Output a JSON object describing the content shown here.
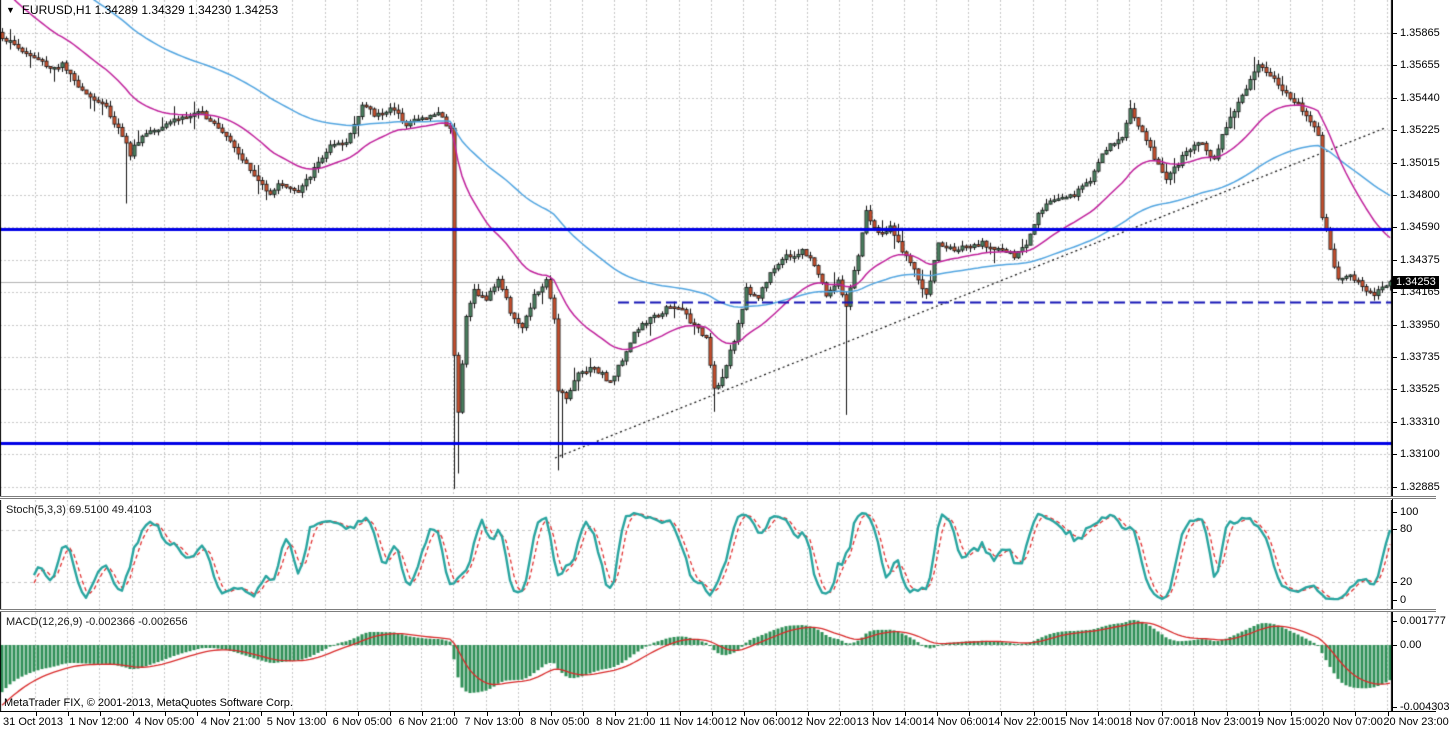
{
  "title": "EURUSD,H1 1.34289 1.34329 1.34230 1.34253",
  "symbol_dropdown_icon": "▼",
  "watermark": "MetaTrader FIX, © 2001-2013, MetaQuotes Software Corp.",
  "chart_data": {
    "type": "candlestick",
    "symbol": "EURUSD",
    "timeframe": "H1",
    "ohlc_display": {
      "open": "1.34289",
      "high": "1.34329",
      "low": "1.34230",
      "close": "1.34253"
    },
    "current_price": "1.34253",
    "price_axis": {
      "labels": [
        "1.35865",
        "1.35655",
        "1.35440",
        "1.35225",
        "1.35015",
        "1.34800",
        "1.34590",
        "1.34375",
        "1.34165",
        "1.33950",
        "1.33735",
        "1.33525",
        "1.33310",
        "1.33100",
        "1.32885"
      ],
      "first_y": 33,
      "step": 32.4,
      "p0": 1.35865,
      "dp": 0.0021
    },
    "stoch_axis": {
      "labels": [
        "100",
        "80",
        "20",
        "0"
      ],
      "ys": [
        512,
        529,
        582,
        600
      ]
    },
    "macd_axis": {
      "labels": [
        "0.001777",
        "0.00",
        "-0.004303"
      ],
      "ys": [
        621,
        645,
        707
      ]
    },
    "time_axis": {
      "labels": [
        "31 Oct 2013",
        "1 Nov 12:00",
        "4 Nov 05:00",
        "4 Nov 21:00",
        "5 Nov 13:00",
        "6 Nov 05:00",
        "6 Nov 21:00",
        "7 Nov 13:00",
        "8 Nov 05:00",
        "8 Nov 21:00",
        "11 Nov 14:00",
        "12 Nov 06:00",
        "12 Nov 22:00",
        "13 Nov 14:00",
        "14 Nov 06:00",
        "14 Nov 22:00",
        "15 Nov 14:00",
        "18 Nov 07:00",
        "18 Nov 23:00",
        "19 Nov 15:00",
        "20 Nov 07:00",
        "20 Nov 23:00"
      ],
      "first_center": 33,
      "spacing": 65.86
    },
    "series": {
      "n_bars": 348,
      "final_close": 1.34253,
      "waypoints": [
        [
          0,
          1.3583
        ],
        [
          4,
          1.3578
        ],
        [
          8,
          1.357
        ],
        [
          12,
          1.3563
        ],
        [
          15,
          1.3567
        ],
        [
          18,
          1.3556
        ],
        [
          22,
          1.3544
        ],
        [
          26,
          1.3539
        ],
        [
          30,
          1.3521
        ],
        [
          32,
          1.3507
        ],
        [
          34,
          1.3516
        ],
        [
          37,
          1.3524
        ],
        [
          41,
          1.3529
        ],
        [
          46,
          1.3531
        ],
        [
          50,
          1.3536
        ],
        [
          53,
          1.3529
        ],
        [
          57,
          1.3516
        ],
        [
          60,
          1.3506
        ],
        [
          64,
          1.3491
        ],
        [
          67,
          1.3482
        ],
        [
          70,
          1.3489
        ],
        [
          74,
          1.3484
        ],
        [
          78,
          1.3497
        ],
        [
          82,
          1.3513
        ],
        [
          86,
          1.3516
        ],
        [
          90,
          1.3539
        ],
        [
          93,
          1.3533
        ],
        [
          97,
          1.3539
        ],
        [
          101,
          1.3527
        ],
        [
          105,
          1.3531
        ],
        [
          109,
          1.3536
        ],
        [
          112,
          1.3523
        ],
        [
          113,
          1.3378
        ],
        [
          114,
          1.3341
        ],
        [
          116,
          1.3402
        ],
        [
          118,
          1.3421
        ],
        [
          121,
          1.3414
        ],
        [
          124,
          1.3426
        ],
        [
          127,
          1.3406
        ],
        [
          130,
          1.3396
        ],
        [
          133,
          1.3416
        ],
        [
          136,
          1.3424
        ],
        [
          138,
          1.3401
        ],
        [
          139,
          1.3356
        ],
        [
          141,
          1.3352
        ],
        [
          144,
          1.3366
        ],
        [
          148,
          1.3369
        ],
        [
          152,
          1.3361
        ],
        [
          155,
          1.3376
        ],
        [
          158,
          1.3391
        ],
        [
          162,
          1.3401
        ],
        [
          166,
          1.3409
        ],
        [
          170,
          1.3406
        ],
        [
          173,
          1.3396
        ],
        [
          176,
          1.3391
        ],
        [
          178,
          1.3357
        ],
        [
          180,
          1.3362
        ],
        [
          183,
          1.3386
        ],
        [
          186,
          1.3421
        ],
        [
          189,
          1.3416
        ],
        [
          192,
          1.3431
        ],
        [
          196,
          1.3441
        ],
        [
          200,
          1.3446
        ],
        [
          203,
          1.3436
        ],
        [
          206,
          1.3416
        ],
        [
          209,
          1.3426
        ],
        [
          211,
          1.3411
        ],
        [
          214,
          1.3441
        ],
        [
          216,
          1.3469
        ],
        [
          219,
          1.3456
        ],
        [
          222,
          1.3461
        ],
        [
          225,
          1.3446
        ],
        [
          228,
          1.3431
        ],
        [
          231,
          1.3416
        ],
        [
          234,
          1.3451
        ],
        [
          237,
          1.3446
        ],
        [
          241,
          1.3446
        ],
        [
          245,
          1.3451
        ],
        [
          249,
          1.3446
        ],
        [
          253,
          1.3441
        ],
        [
          256,
          1.3451
        ],
        [
          259,
          1.3471
        ],
        [
          262,
          1.3476
        ],
        [
          265,
          1.3481
        ],
        [
          268,
          1.3483
        ],
        [
          272,
          1.3491
        ],
        [
          276,
          1.3511
        ],
        [
          280,
          1.3521
        ],
        [
          282,
          1.3536
        ],
        [
          285,
          1.3521
        ],
        [
          288,
          1.3506
        ],
        [
          291,
          1.3494
        ],
        [
          294,
          1.3501
        ],
        [
          297,
          1.3511
        ],
        [
          300,
          1.3516
        ],
        [
          303,
          1.3506
        ],
        [
          306,
          1.3526
        ],
        [
          309,
          1.3541
        ],
        [
          312,
          1.3556
        ],
        [
          314,
          1.3566
        ],
        [
          316,
          1.3561
        ],
        [
          318,
          1.3556
        ],
        [
          321,
          1.3546
        ],
        [
          324,
          1.3541
        ],
        [
          327,
          1.3531
        ],
        [
          329,
          1.3521
        ],
        [
          330,
          1.3466
        ],
        [
          332,
          1.3446
        ],
        [
          334,
          1.3426
        ],
        [
          337,
          1.3431
        ],
        [
          340,
          1.3421
        ],
        [
          343,
          1.3417
        ],
        [
          345,
          1.3421
        ],
        [
          347,
          1.34253
        ]
      ],
      "spikes": [
        {
          "i": 2,
          "high": 1.3589
        },
        {
          "i": 31,
          "low": 1.3476
        },
        {
          "i": 113,
          "low": 1.3291
        },
        {
          "i": 114,
          "low": 1.3301
        },
        {
          "i": 139,
          "low": 1.3303
        },
        {
          "i": 140,
          "low": 1.3311
        },
        {
          "i": 178,
          "low": 1.3341
        },
        {
          "i": 211,
          "low": 1.3339
        },
        {
          "i": 282,
          "high": 1.3543
        },
        {
          "i": 313,
          "high": 1.3571
        },
        {
          "i": 314,
          "high": 1.3569
        }
      ]
    },
    "moving_averages": [
      {
        "name": "ma-slow",
        "period": 75,
        "seed": 1.3648,
        "color": "#53a6e1"
      },
      {
        "name": "ma-fast",
        "period": 26,
        "seed": 1.3618,
        "color": "#c0219c"
      }
    ],
    "indicators": {
      "stoch": {
        "label": "Stoch(5,3,3) 69.5100 49.4103",
        "main_value": 69.51,
        "signal_value": 49.4103,
        "k": 5,
        "slowing": 3,
        "d": 3,
        "levels": [
          80,
          20
        ],
        "main_color": "#29a5a0",
        "signal_color": "#e23434"
      },
      "macd": {
        "label": "MACD(12,26,9) -0.002366 -0.002656",
        "macd_value": -0.002366,
        "signal_value": -0.002656,
        "fast": 12,
        "slow": 26,
        "signal": 9,
        "hist_color": "#2f8f57",
        "signal_color": "#d92b2b",
        "seed_fast_offset": -0.0008,
        "seed_slow_offset": 0.0028,
        "seed_signal": -0.0044
      }
    },
    "objects": {
      "hlines": [
        {
          "y": 229,
          "color": "#0000e6",
          "width": 3
        },
        {
          "y": 443,
          "color": "#0000e6",
          "width": 3
        }
      ],
      "dashed_hline": {
        "y": 302,
        "x1": 618,
        "x2": 1392,
        "color": "#1515b5"
      },
      "trendline": {
        "x1": 555,
        "y1": 458,
        "x2": 1385,
        "y2": 128,
        "color": "#111111"
      },
      "bid_line": {
        "y": 282,
        "color": "#b2b2b2"
      }
    },
    "colors": {
      "bg": "#ffffff",
      "grid": "#c8c8c8",
      "up": "#4a8060",
      "down": "#c8502e",
      "outline": "#1c1c1c",
      "wick": "#111111",
      "axis_text": "#000000"
    },
    "grid": {
      "v_start": 35,
      "v_step": 32.18
    }
  }
}
